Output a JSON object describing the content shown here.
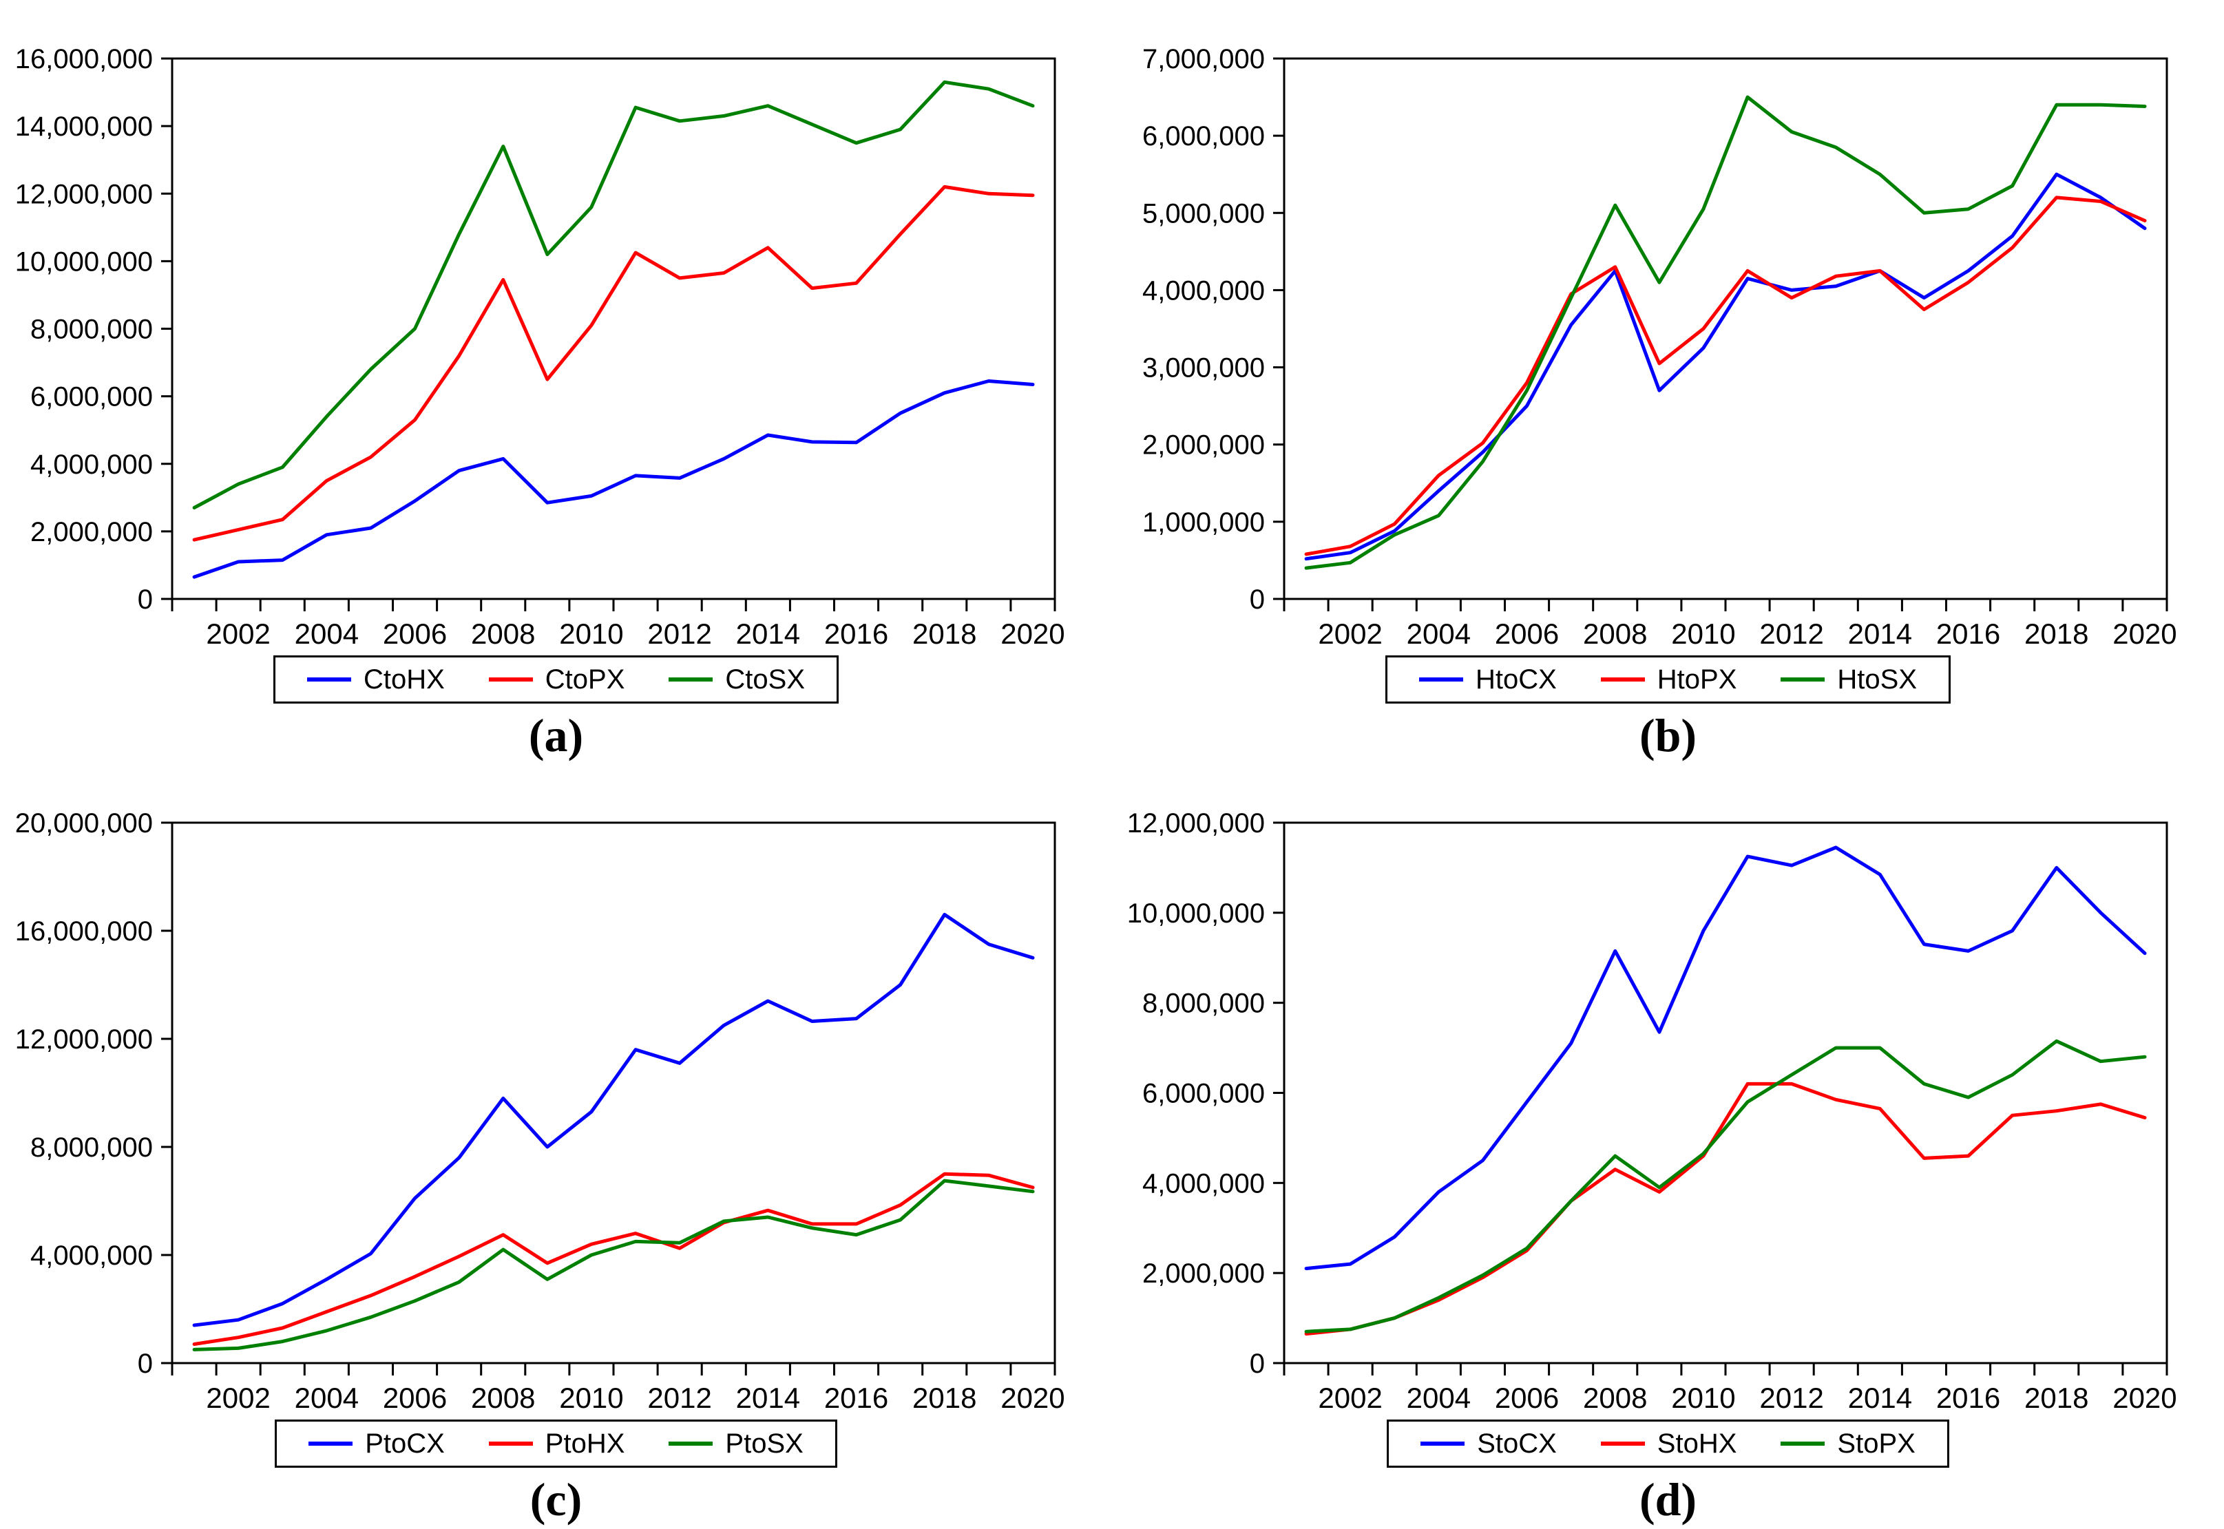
{
  "page": {
    "background": "#ffffff",
    "axis_color": "#000000"
  },
  "chart_data": [
    {
      "id": "a",
      "type": "line",
      "caption": "(a)",
      "grid": false,
      "legend_position": "bottom",
      "x": [
        2001,
        2002,
        2003,
        2004,
        2005,
        2006,
        2007,
        2008,
        2009,
        2010,
        2011,
        2012,
        2013,
        2014,
        2015,
        2016,
        2017,
        2018,
        2019,
        2020
      ],
      "x_axis_range": [
        2000.5,
        2020.5
      ],
      "x_tick_labels": [
        "2002",
        "2004",
        "2006",
        "2008",
        "2010",
        "2012",
        "2014",
        "2016",
        "2018",
        "2020"
      ],
      "ylim": [
        0,
        16000000
      ],
      "ystep": 2000000,
      "series": [
        {
          "name": "CtoHX",
          "color": "#0000ff",
          "values": [
            650000,
            1100000,
            1150000,
            1900000,
            2100000,
            2900000,
            3800000,
            4150000,
            2850000,
            3050000,
            3650000,
            3580000,
            4150000,
            4850000,
            4650000,
            4630000,
            5500000,
            6100000,
            6450000,
            6350000
          ]
        },
        {
          "name": "CtoPX",
          "color": "#ff0000",
          "values": [
            1750000,
            2050000,
            2350000,
            3500000,
            4200000,
            5300000,
            7200000,
            9450000,
            6500000,
            8100000,
            10250000,
            9500000,
            9650000,
            10400000,
            9200000,
            9350000,
            10800000,
            12200000,
            12000000,
            11950000
          ]
        },
        {
          "name": "CtoSX",
          "color": "#008000",
          "values": [
            2700000,
            3400000,
            3900000,
            5400000,
            6800000,
            8000000,
            10800000,
            13400000,
            10200000,
            11600000,
            14550000,
            14150000,
            14300000,
            14600000,
            14050000,
            13500000,
            13900000,
            15300000,
            15100000,
            14600000
          ]
        }
      ]
    },
    {
      "id": "b",
      "type": "line",
      "caption": "(b)",
      "grid": false,
      "legend_position": "bottom",
      "x": [
        2001,
        2002,
        2003,
        2004,
        2005,
        2006,
        2007,
        2008,
        2009,
        2010,
        2011,
        2012,
        2013,
        2014,
        2015,
        2016,
        2017,
        2018,
        2019,
        2020
      ],
      "x_axis_range": [
        2000.5,
        2020.5
      ],
      "x_tick_labels": [
        "2002",
        "2004",
        "2006",
        "2008",
        "2010",
        "2012",
        "2014",
        "2016",
        "2018",
        "2020"
      ],
      "ylim": [
        0,
        7000000
      ],
      "ystep": 1000000,
      "series": [
        {
          "name": "HtoCX",
          "color": "#0000ff",
          "values": [
            520000,
            600000,
            880000,
            1400000,
            1900000,
            2500000,
            3550000,
            4250000,
            2700000,
            3250000,
            4150000,
            4000000,
            4050000,
            4250000,
            3900000,
            4250000,
            4700000,
            5500000,
            5200000,
            4800000
          ]
        },
        {
          "name": "HtoPX",
          "color": "#ff0000",
          "values": [
            580000,
            680000,
            970000,
            1600000,
            2020000,
            2800000,
            3950000,
            4300000,
            3050000,
            3500000,
            4250000,
            3900000,
            4180000,
            4250000,
            3750000,
            4100000,
            4550000,
            5200000,
            5150000,
            4900000
          ]
        },
        {
          "name": "HtoSX",
          "color": "#008000",
          "values": [
            400000,
            470000,
            830000,
            1080000,
            1780000,
            2700000,
            3900000,
            5100000,
            4100000,
            5050000,
            6500000,
            6050000,
            5850000,
            5500000,
            5000000,
            5050000,
            5350000,
            6400000,
            6400000,
            6380000
          ]
        }
      ]
    },
    {
      "id": "c",
      "type": "line",
      "caption": "(c)",
      "grid": false,
      "legend_position": "bottom",
      "x": [
        2001,
        2002,
        2003,
        2004,
        2005,
        2006,
        2007,
        2008,
        2009,
        2010,
        2011,
        2012,
        2013,
        2014,
        2015,
        2016,
        2017,
        2018,
        2019,
        2020
      ],
      "x_axis_range": [
        2000.5,
        2020.5
      ],
      "x_tick_labels": [
        "2002",
        "2004",
        "2006",
        "2008",
        "2010",
        "2012",
        "2014",
        "2016",
        "2018",
        "2020"
      ],
      "ylim": [
        0,
        20000000
      ],
      "ystep": 4000000,
      "series": [
        {
          "name": "PtoCX",
          "color": "#0000ff",
          "values": [
            1400000,
            1600000,
            2200000,
            3100000,
            4050000,
            6100000,
            7600000,
            9800000,
            8000000,
            9300000,
            11600000,
            11100000,
            12500000,
            13400000,
            12650000,
            12750000,
            14000000,
            16600000,
            15500000,
            15000000
          ]
        },
        {
          "name": "PtoHX",
          "color": "#ff0000",
          "values": [
            700000,
            950000,
            1300000,
            1900000,
            2500000,
            3200000,
            3950000,
            4750000,
            3700000,
            4400000,
            4800000,
            4250000,
            5200000,
            5650000,
            5150000,
            5150000,
            5850000,
            7000000,
            6950000,
            6500000
          ]
        },
        {
          "name": "PtoSX",
          "color": "#008000",
          "values": [
            500000,
            550000,
            800000,
            1200000,
            1700000,
            2300000,
            3000000,
            4200000,
            3100000,
            4000000,
            4500000,
            4450000,
            5250000,
            5400000,
            5000000,
            4750000,
            5300000,
            6750000,
            6550000,
            6350000
          ]
        }
      ]
    },
    {
      "id": "d",
      "type": "line",
      "caption": "(d)",
      "grid": false,
      "legend_position": "bottom",
      "x": [
        2001,
        2002,
        2003,
        2004,
        2005,
        2006,
        2007,
        2008,
        2009,
        2010,
        2011,
        2012,
        2013,
        2014,
        2015,
        2016,
        2017,
        2018,
        2019,
        2020
      ],
      "x_axis_range": [
        2000.5,
        2020.5
      ],
      "x_tick_labels": [
        "2002",
        "2004",
        "2006",
        "2008",
        "2010",
        "2012",
        "2014",
        "2016",
        "2018",
        "2020"
      ],
      "ylim": [
        0,
        12000000
      ],
      "ystep": 2000000,
      "series": [
        {
          "name": "StoCX",
          "color": "#0000ff",
          "values": [
            2100000,
            2200000,
            2800000,
            3800000,
            4500000,
            5800000,
            7100000,
            9150000,
            7350000,
            9600000,
            11250000,
            11050000,
            11450000,
            10850000,
            9300000,
            9150000,
            9600000,
            11000000,
            10000000,
            9100000
          ]
        },
        {
          "name": "StoHX",
          "color": "#ff0000",
          "values": [
            650000,
            750000,
            1000000,
            1400000,
            1900000,
            2500000,
            3600000,
            4300000,
            3800000,
            4600000,
            6200000,
            6200000,
            5850000,
            5650000,
            4550000,
            4600000,
            5500000,
            5600000,
            5750000,
            5450000
          ]
        },
        {
          "name": "StoPX",
          "color": "#008000",
          "values": [
            700000,
            750000,
            1000000,
            1450000,
            1950000,
            2550000,
            3600000,
            4600000,
            3900000,
            4650000,
            5800000,
            6400000,
            7000000,
            7000000,
            6200000,
            5900000,
            6400000,
            7150000,
            6700000,
            6800000
          ]
        }
      ]
    }
  ]
}
